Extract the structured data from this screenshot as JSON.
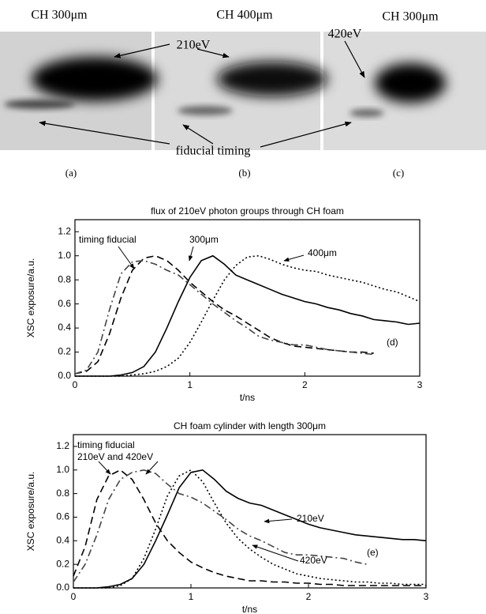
{
  "images": {
    "labels": [
      "CH 300μm",
      "CH 400μm",
      "CH 300μm"
    ],
    "energy_210": "210eV",
    "energy_420": "420eV",
    "fiducial": "fiducial timing",
    "panels": [
      "(a)",
      "(b)",
      "(c)"
    ]
  },
  "chart_data": [
    {
      "type": "line",
      "title": "flux of 210eV photon groups through CH foam",
      "xlabel": "t/ns",
      "ylabel": "XSC exposure/a.u.",
      "annotations": [
        "timing fiducial",
        "300μm",
        "400μm",
        "(d)"
      ],
      "xlim": [
        0,
        3
      ],
      "xticks": [
        0,
        1,
        2,
        3
      ],
      "ylim": [
        0,
        1.3
      ],
      "yticks": [
        {
          "value": 0,
          "label": "0.0"
        },
        0.2,
        0.4,
        0.6,
        0.8,
        {
          "value": 1,
          "label": "1.0"
        },
        1.2
      ],
      "x": [
        0,
        0.1,
        0.2,
        0.3,
        0.4,
        0.5,
        0.6,
        0.7,
        0.8,
        0.9,
        1,
        1.1,
        1.2,
        1.3,
        1.4,
        1.5,
        1.6,
        1.7,
        1.8,
        1.9,
        2,
        2.1,
        2.2,
        2.3,
        2.4,
        2.5,
        2.6,
        2.7,
        2.8,
        2.9,
        3
      ],
      "series": [
        {
          "color": "#000000",
          "dash": "solid",
          "values": [
            0,
            0,
            0,
            0,
            0.01,
            0.03,
            0.08,
            0.2,
            0.4,
            0.62,
            0.82,
            0.96,
            1.0,
            0.93,
            0.84,
            0.8,
            0.76,
            0.72,
            0.68,
            0.65,
            0.62,
            0.6,
            0.57,
            0.55,
            0.52,
            0.5,
            0.47,
            0.46,
            0.45,
            0.43,
            0.44
          ]
        },
        {
          "color": "#000000",
          "dash": "dot",
          "values": [
            0,
            0,
            0,
            0,
            0,
            0.01,
            0.02,
            0.04,
            0.08,
            0.15,
            0.28,
            0.45,
            0.63,
            0.8,
            0.92,
            0.99,
            1.0,
            0.97,
            0.93,
            0.9,
            0.88,
            0.87,
            0.84,
            0.82,
            0.8,
            0.78,
            0.75,
            0.72,
            0.7,
            0.66,
            0.62
          ]
        },
        {
          "color": "#000000",
          "dash": "dash",
          "values": [
            0.02,
            0.04,
            0.12,
            0.35,
            0.65,
            0.88,
            0.98,
            1.0,
            0.96,
            0.88,
            0.78,
            0.7,
            0.62,
            0.55,
            0.5,
            0.44,
            0.38,
            0.32,
            0.28,
            0.25,
            0.24,
            0.23,
            0.22,
            0.21,
            0.2,
            0.2,
            0.19,
            null,
            null,
            null,
            null
          ]
        },
        {
          "color": "#444444",
          "dash": "dashdot",
          "values": [
            0.02,
            0.05,
            0.2,
            0.55,
            0.85,
            0.95,
            0.96,
            0.93,
            0.88,
            0.84,
            0.76,
            0.68,
            0.6,
            0.53,
            0.46,
            0.4,
            0.33,
            0.3,
            0.28,
            0.26,
            0.26,
            0.24,
            0.22,
            0.21,
            0.2,
            0.19,
            0.18,
            null,
            null,
            null,
            null
          ]
        }
      ]
    },
    {
      "type": "line",
      "title": "CH foam cylinder with length 300μm",
      "xlabel": "t/ns",
      "ylabel": "XSC exposure/a.u.",
      "annotations": [
        "timing fiducial",
        "210eV and 420eV",
        "210eV",
        "420eV",
        "(e)"
      ],
      "xlim": [
        0,
        3
      ],
      "xticks": [
        0,
        1,
        2,
        3
      ],
      "ylim": [
        0,
        1.3
      ],
      "yticks": [
        {
          "value": 0,
          "label": "0.0"
        },
        0.2,
        0.4,
        0.6,
        0.8,
        {
          "value": 1,
          "label": "1.0"
        },
        1.2
      ],
      "x": [
        0,
        0.1,
        0.2,
        0.3,
        0.4,
        0.5,
        0.6,
        0.7,
        0.8,
        0.9,
        1,
        1.1,
        1.2,
        1.3,
        1.4,
        1.5,
        1.6,
        1.7,
        1.8,
        1.9,
        2,
        2.1,
        2.2,
        2.3,
        2.4,
        2.5,
        2.6,
        2.7,
        2.8,
        2.9,
        3
      ],
      "series": [
        {
          "color": "#000000",
          "dash": "solid",
          "values": [
            0,
            0,
            0,
            0.01,
            0.03,
            0.08,
            0.2,
            0.4,
            0.62,
            0.85,
            0.98,
            1.0,
            0.92,
            0.82,
            0.76,
            0.72,
            0.7,
            0.66,
            0.62,
            0.58,
            0.54,
            0.51,
            0.49,
            0.47,
            0.45,
            0.44,
            0.43,
            0.42,
            0.41,
            0.41,
            0.4
          ]
        },
        {
          "color": "#000000",
          "dash": "dot",
          "values": [
            0,
            0,
            0,
            0,
            0.02,
            0.08,
            0.25,
            0.5,
            0.78,
            0.95,
            1.0,
            0.9,
            0.72,
            0.55,
            0.42,
            0.33,
            0.26,
            0.2,
            0.16,
            0.12,
            0.1,
            0.08,
            0.07,
            0.06,
            0.05,
            0.05,
            0.04,
            0.04,
            0.03,
            0.03,
            0.03
          ]
        },
        {
          "color": "#000000",
          "dash": "dash",
          "values": [
            0.1,
            0.35,
            0.75,
            0.95,
            1.0,
            0.92,
            0.75,
            0.55,
            0.4,
            0.3,
            0.22,
            0.17,
            0.13,
            0.1,
            0.08,
            0.06,
            0.06,
            0.05,
            0.05,
            0.04,
            0.04,
            0.03,
            0.03,
            0.02,
            0.02,
            0.02,
            0.02,
            0.02,
            0.02,
            0.02,
            0.02
          ]
        },
        {
          "color": "#444444",
          "dash": "dashdot",
          "values": [
            0.05,
            0.2,
            0.45,
            0.75,
            0.92,
            0.98,
            1.0,
            0.97,
            0.88,
            0.8,
            0.77,
            0.72,
            0.65,
            0.58,
            0.5,
            0.44,
            0.4,
            0.35,
            0.3,
            0.28,
            0.28,
            0.27,
            0.26,
            0.25,
            0.22,
            0.2,
            null,
            null,
            null,
            null,
            null
          ]
        }
      ]
    }
  ]
}
